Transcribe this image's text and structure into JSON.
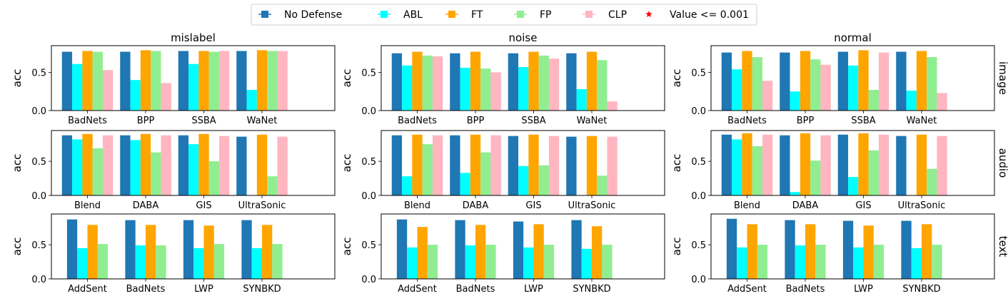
{
  "legend": {
    "items": [
      {
        "label": "No Defense",
        "color": "#1f77b4",
        "marker": "square"
      },
      {
        "label": "ABL",
        "color": "#00ffff",
        "marker": "square"
      },
      {
        "label": "FT",
        "color": "#ffa500",
        "marker": "square"
      },
      {
        "label": "FP",
        "color": "#90ee90",
        "marker": "square"
      },
      {
        "label": "CLP",
        "color": "#ffb6c1",
        "marker": "square"
      },
      {
        "label": "Value <= 0.001",
        "color": "#ff0000",
        "marker": "star"
      }
    ]
  },
  "col_titles": [
    "mislabel",
    "noise",
    "normal"
  ],
  "row_labels": [
    "image",
    "audio",
    "text"
  ],
  "ylabel": "acc",
  "chart_data": [
    {
      "type": "bar",
      "title": "mislabel",
      "row": "image",
      "ylabel": "acc",
      "ylim": [
        0,
        0.85
      ],
      "yticks": [
        0.0,
        0.5
      ],
      "categories": [
        "BadNets",
        "BPP",
        "SSBA",
        "WaNet"
      ],
      "series": [
        {
          "name": "No Defense",
          "values": [
            0.77,
            0.77,
            0.78,
            0.78
          ]
        },
        {
          "name": "ABL",
          "values": [
            0.61,
            0.4,
            0.61,
            0.27
          ]
        },
        {
          "name": "FT",
          "values": [
            0.78,
            0.79,
            0.78,
            0.79
          ]
        },
        {
          "name": "FP",
          "values": [
            0.77,
            0.78,
            0.77,
            0.78
          ]
        },
        {
          "name": "CLP",
          "values": [
            0.53,
            0.36,
            0.78,
            0.78
          ]
        }
      ]
    },
    {
      "type": "bar",
      "title": "noise",
      "row": "image",
      "ylabel": "acc",
      "ylim": [
        0,
        0.85
      ],
      "yticks": [
        0.0,
        0.5
      ],
      "categories": [
        "BadNets",
        "BPP",
        "SSBA",
        "WaNet"
      ],
      "series": [
        {
          "name": "No Defense",
          "values": [
            0.75,
            0.75,
            0.75,
            0.75
          ]
        },
        {
          "name": "ABL",
          "values": [
            0.59,
            0.56,
            0.57,
            0.28
          ]
        },
        {
          "name": "FT",
          "values": [
            0.77,
            0.77,
            0.77,
            0.77
          ]
        },
        {
          "name": "FP",
          "values": [
            0.72,
            0.55,
            0.72,
            0.66
          ]
        },
        {
          "name": "CLP",
          "values": [
            0.71,
            0.5,
            0.68,
            0.12
          ]
        }
      ]
    },
    {
      "type": "bar",
      "title": "normal",
      "row": "image",
      "ylabel": "acc",
      "ylim": [
        0,
        0.85
      ],
      "yticks": [
        0.0,
        0.5
      ],
      "categories": [
        "BadNets",
        "BPP",
        "SSBA",
        "WaNet"
      ],
      "series": [
        {
          "name": "No Defense",
          "values": [
            0.76,
            0.76,
            0.77,
            0.77
          ]
        },
        {
          "name": "ABL",
          "values": [
            0.54,
            0.25,
            0.59,
            0.26
          ]
        },
        {
          "name": "FT",
          "values": [
            0.78,
            0.78,
            0.79,
            0.78
          ]
        },
        {
          "name": "FP",
          "values": [
            0.7,
            0.67,
            0.27,
            0.7
          ]
        },
        {
          "name": "CLP",
          "values": [
            0.39,
            0.6,
            0.76,
            0.23
          ]
        }
      ]
    },
    {
      "type": "bar",
      "title": "mislabel",
      "row": "audio",
      "ylabel": "acc",
      "ylim": [
        0,
        0.95
      ],
      "yticks": [
        0.0,
        0.5
      ],
      "categories": [
        "Blend",
        "DABA",
        "GIS",
        "UltraSonic"
      ],
      "series": [
        {
          "name": "No Defense",
          "values": [
            0.88,
            0.88,
            0.88,
            0.86
          ]
        },
        {
          "name": "ABL",
          "values": [
            0.82,
            0.81,
            0.75,
            0.0
          ]
        },
        {
          "name": "FT",
          "values": [
            0.9,
            0.9,
            0.9,
            0.89
          ]
        },
        {
          "name": "FP",
          "values": [
            0.69,
            0.63,
            0.5,
            0.28
          ]
        },
        {
          "name": "CLP",
          "values": [
            0.88,
            0.88,
            0.87,
            0.86
          ]
        }
      ]
    },
    {
      "type": "bar",
      "title": "noise",
      "row": "audio",
      "ylabel": "acc",
      "ylim": [
        0,
        0.95
      ],
      "yticks": [
        0.0,
        0.5
      ],
      "categories": [
        "Blend",
        "DABA",
        "GIS",
        "UltraSonic"
      ],
      "series": [
        {
          "name": "No Defense",
          "values": [
            0.88,
            0.88,
            0.87,
            0.86
          ]
        },
        {
          "name": "ABL",
          "values": [
            0.28,
            0.33,
            0.43,
            0.0
          ]
        },
        {
          "name": "FT",
          "values": [
            0.89,
            0.89,
            0.89,
            0.87
          ]
        },
        {
          "name": "FP",
          "values": [
            0.75,
            0.63,
            0.44,
            0.29
          ]
        },
        {
          "name": "CLP",
          "values": [
            0.88,
            0.88,
            0.87,
            0.86
          ]
        }
      ]
    },
    {
      "type": "bar",
      "title": "normal",
      "row": "audio",
      "ylabel": "acc",
      "ylim": [
        0,
        0.95
      ],
      "yticks": [
        0.0,
        0.5
      ],
      "categories": [
        "Blend",
        "DABA",
        "GIS",
        "UltraSonic"
      ],
      "series": [
        {
          "name": "No Defense",
          "values": [
            0.89,
            0.88,
            0.89,
            0.87
          ]
        },
        {
          "name": "ABL",
          "values": [
            0.82,
            0.05,
            0.27,
            0.0
          ]
        },
        {
          "name": "FT",
          "values": [
            0.91,
            0.91,
            0.91,
            0.89
          ]
        },
        {
          "name": "FP",
          "values": [
            0.72,
            0.51,
            0.66,
            0.39
          ]
        },
        {
          "name": "CLP",
          "values": [
            0.89,
            0.88,
            0.89,
            0.87
          ]
        }
      ]
    },
    {
      "type": "bar",
      "title": "mislabel",
      "row": "text",
      "ylabel": "acc",
      "ylim": [
        0,
        0.95
      ],
      "yticks": [
        0.0,
        0.5
      ],
      "categories": [
        "AddSent",
        "BadNets",
        "LWP",
        "SYNBKD"
      ],
      "series": [
        {
          "name": "No Defense",
          "values": [
            0.87,
            0.86,
            0.86,
            0.86
          ]
        },
        {
          "name": "ABL",
          "values": [
            0.45,
            0.49,
            0.45,
            0.45
          ]
        },
        {
          "name": "FT",
          "values": [
            0.79,
            0.79,
            0.78,
            0.79
          ]
        },
        {
          "name": "FP",
          "values": [
            0.51,
            0.49,
            0.51,
            0.51
          ]
        }
      ]
    },
    {
      "type": "bar",
      "title": "noise",
      "row": "text",
      "ylabel": "acc",
      "ylim": [
        0,
        0.95
      ],
      "yticks": [
        0.0,
        0.5
      ],
      "categories": [
        "AddSent",
        "BadNets",
        "LWP",
        "SYNBKD"
      ],
      "series": [
        {
          "name": "No Defense",
          "values": [
            0.87,
            0.86,
            0.84,
            0.86
          ]
        },
        {
          "name": "ABL",
          "values": [
            0.46,
            0.49,
            0.46,
            0.44
          ]
        },
        {
          "name": "FT",
          "values": [
            0.76,
            0.79,
            0.8,
            0.77
          ]
        },
        {
          "name": "FP",
          "values": [
            0.5,
            0.5,
            0.5,
            0.5
          ]
        }
      ]
    },
    {
      "type": "bar",
      "title": "normal",
      "row": "text",
      "ylabel": "acc",
      "ylim": [
        0,
        0.95
      ],
      "yticks": [
        0.0,
        0.5
      ],
      "categories": [
        "AddSent",
        "BadNets",
        "LWP",
        "SYNBKD"
      ],
      "series": [
        {
          "name": "No Defense",
          "values": [
            0.88,
            0.86,
            0.85,
            0.85
          ]
        },
        {
          "name": "ABL",
          "values": [
            0.46,
            0.49,
            0.46,
            0.45
          ]
        },
        {
          "name": "FT",
          "values": [
            0.8,
            0.8,
            0.78,
            0.8
          ]
        },
        {
          "name": "FP",
          "values": [
            0.5,
            0.5,
            0.5,
            0.5
          ]
        }
      ]
    }
  ]
}
